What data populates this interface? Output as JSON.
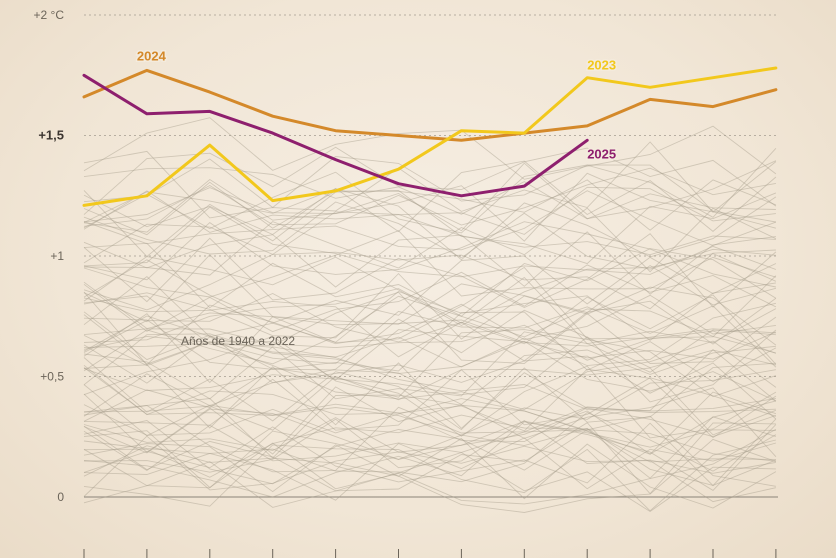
{
  "chart_data": {
    "type": "line",
    "title": "",
    "xlabel": "",
    "ylabel": "",
    "unit": "°C",
    "ylim": [
      -0.25,
      2.0
    ],
    "months": 12,
    "y_ticks": [
      {
        "value": 2,
        "label": "+2 °C",
        "bold": false
      },
      {
        "value": 1.5,
        "label": "+1,5",
        "bold": true
      },
      {
        "value": 1,
        "label": "+1",
        "bold": false
      },
      {
        "value": 0.5,
        "label": "+0,5",
        "bold": false
      },
      {
        "value": 0,
        "label": "0",
        "bold": false
      }
    ],
    "background_annotation": "Años de 1940 a 2022",
    "background_series_count": 83,
    "background_range": [
      0.0,
      1.45
    ],
    "series": [
      {
        "name": "2024",
        "color": "#d4892a",
        "values": [
          1.66,
          1.77,
          1.68,
          1.58,
          1.52,
          1.5,
          1.48,
          1.51,
          1.54,
          1.65,
          1.62,
          1.69
        ]
      },
      {
        "name": "2023",
        "color": "#f2c81c",
        "values": [
          1.21,
          1.25,
          1.46,
          1.23,
          1.27,
          1.36,
          1.52,
          1.51,
          1.74,
          1.7,
          1.74,
          1.78
        ]
      },
      {
        "name": "2025",
        "color": "#8e1f6e",
        "values": [
          1.75,
          1.59,
          1.6,
          1.51,
          1.4,
          1.3,
          1.25,
          1.29,
          1.48
        ]
      }
    ],
    "colors": {
      "background_lines": "#a79d8c",
      "grid": "#a49c90",
      "baseline": "#8a8378"
    }
  }
}
